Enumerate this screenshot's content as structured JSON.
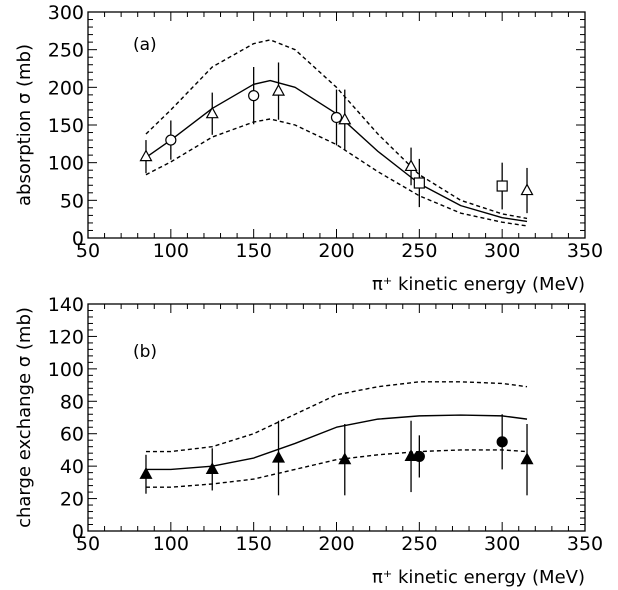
{
  "chart_data": [
    {
      "type": "line",
      "panel_label": "(a)",
      "xlabel": "π⁺ kinetic energy (MeV)",
      "ylabel": "absorption σ (mb)",
      "xlim": [
        50,
        350
      ],
      "ylim": [
        0,
        300
      ],
      "xticks": [
        50,
        100,
        150,
        200,
        250,
        300,
        350
      ],
      "yticks": [
        0,
        50,
        100,
        150,
        200,
        250,
        300
      ],
      "grid": false,
      "curves": [
        {
          "style": "solid",
          "x": [
            85,
            100,
            125,
            150,
            160,
            175,
            200,
            225,
            250,
            275,
            300,
            315
          ],
          "y": [
            107,
            130,
            172,
            204,
            209,
            200,
            165,
            115,
            72,
            43,
            27,
            22
          ]
        },
        {
          "style": "dashed",
          "x": [
            85,
            100,
            125,
            150,
            160,
            175,
            200,
            225,
            250,
            275,
            300,
            315
          ],
          "y": [
            138,
            170,
            227,
            258,
            263,
            250,
            200,
            138,
            84,
            50,
            32,
            26
          ]
        },
        {
          "style": "dashed",
          "x": [
            85,
            100,
            125,
            150,
            160,
            175,
            200,
            225,
            250,
            275,
            300,
            315
          ],
          "y": [
            84,
            101,
            134,
            154,
            158,
            150,
            124,
            88,
            56,
            33,
            21,
            16
          ]
        }
      ],
      "points": [
        {
          "marker": "triangle-open",
          "x": 85,
          "y": 108,
          "err": 22
        },
        {
          "marker": "circle-open",
          "x": 100,
          "y": 130,
          "err": 26
        },
        {
          "marker": "triangle-open",
          "x": 125,
          "y": 165,
          "err": 28
        },
        {
          "marker": "circle-open",
          "x": 150,
          "y": 189,
          "err": 38
        },
        {
          "marker": "triangle-open",
          "x": 165,
          "y": 195,
          "err": 38
        },
        {
          "marker": "circle-open",
          "x": 200,
          "y": 160,
          "err": 37
        },
        {
          "marker": "triangle-open",
          "x": 205,
          "y": 157,
          "err": 40
        },
        {
          "marker": "triangle-open",
          "x": 245,
          "y": 95,
          "err": 25
        },
        {
          "marker": "square-open",
          "x": 250,
          "y": 73,
          "err": 32
        },
        {
          "marker": "square-open",
          "x": 300,
          "y": 69,
          "err": 31
        },
        {
          "marker": "triangle-open",
          "x": 315,
          "y": 63,
          "err": 30
        }
      ]
    },
    {
      "type": "line",
      "panel_label": "(b)",
      "xlabel": "π⁺ kinetic energy (MeV)",
      "ylabel": "charge exchange σ (mb)",
      "xlim": [
        50,
        350
      ],
      "ylim": [
        0,
        140
      ],
      "xticks": [
        50,
        100,
        150,
        200,
        250,
        300,
        350
      ],
      "yticks": [
        0,
        20,
        40,
        60,
        80,
        100,
        120,
        140
      ],
      "grid": false,
      "curves": [
        {
          "style": "solid",
          "x": [
            85,
            100,
            125,
            150,
            175,
            200,
            225,
            250,
            275,
            300,
            315
          ],
          "y": [
            38,
            38,
            40,
            45,
            54,
            64,
            69,
            71,
            71.5,
            71,
            69
          ]
        },
        {
          "style": "dashed",
          "x": [
            85,
            100,
            125,
            150,
            175,
            200,
            225,
            250,
            275,
            300,
            315
          ],
          "y": [
            49,
            49,
            52,
            60,
            72,
            84,
            89,
            92,
            92,
            91,
            89
          ]
        },
        {
          "style": "dashed",
          "x": [
            85,
            100,
            125,
            150,
            175,
            200,
            225,
            250,
            275,
            300,
            315
          ],
          "y": [
            27,
            27,
            29,
            32,
            38,
            44,
            47,
            49,
            50,
            50,
            49
          ]
        }
      ],
      "points": [
        {
          "marker": "triangle-filled",
          "x": 85,
          "y": 35,
          "err": 12
        },
        {
          "marker": "triangle-filled",
          "x": 125,
          "y": 38,
          "err": 13
        },
        {
          "marker": "triangle-filled",
          "x": 165,
          "y": 45,
          "err": 23
        },
        {
          "marker": "triangle-filled",
          "x": 205,
          "y": 44,
          "err": 22
        },
        {
          "marker": "triangle-filled",
          "x": 245,
          "y": 46,
          "err": 22
        },
        {
          "marker": "circle-filled",
          "x": 250,
          "y": 46,
          "err": 13
        },
        {
          "marker": "circle-filled",
          "x": 300,
          "y": 55,
          "err": 17
        },
        {
          "marker": "triangle-filled",
          "x": 315,
          "y": 44,
          "err": 22
        }
      ]
    }
  ]
}
